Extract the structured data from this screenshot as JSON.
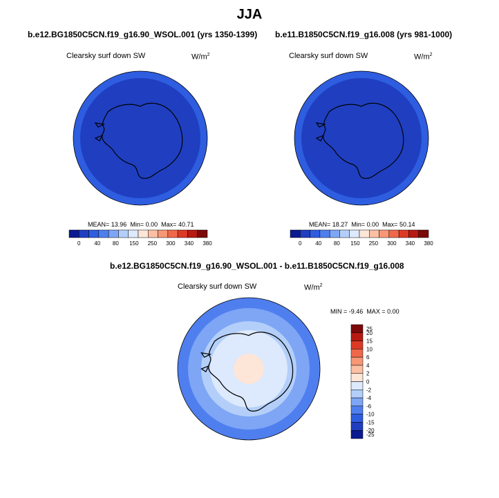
{
  "title": "JJA",
  "panels": [
    {
      "title": "b.e12.BG1850C5CN.f19_g16.90_WSOL.001 (yrs 1350-1399)",
      "variable": "Clearsky surf down SW",
      "units_base": "W/m",
      "units_exp": "2",
      "stats": {
        "mean_label": "MEAN=",
        "mean": "13.96",
        "min_label": "Min=",
        "min": "0.00",
        "max_label": "Max=",
        "max": "40.71"
      },
      "colorbar_labels": [
        "0",
        "40",
        "80",
        "150",
        "250",
        "300",
        "340",
        "380"
      ]
    },
    {
      "title": "b.e11.B1850C5CN.f19_g16.008 (yrs 981-1000)",
      "variable": "Clearsky surf down SW",
      "units_base": "W/m",
      "units_exp": "2",
      "stats": {
        "mean_label": "MEAN=",
        "mean": "18.27",
        "min_label": "Min=",
        "min": "0.00",
        "max_label": "Max=",
        "max": "50.14"
      },
      "colorbar_labels": [
        "0",
        "40",
        "80",
        "150",
        "250",
        "300",
        "340",
        "380"
      ]
    }
  ],
  "diff": {
    "title": "b.e12.BG1850C5CN.f19_g16.90_WSOL.001 - b.e11.B1850C5CN.f19_g16.008",
    "variable": "Clearsky surf down SW",
    "units_base": "W/m",
    "units_exp": "2",
    "stats": {
      "min_label": "MIN =",
      "min": "-9.46",
      "max_label": "MAX =",
      "max": "0.00"
    },
    "colorbar_labels": [
      "25",
      "20",
      "15",
      "10",
      "6",
      "4",
      "2",
      "0",
      "-2",
      "-4",
      "-6",
      "-10",
      "-15",
      "-20",
      "-25"
    ]
  },
  "colors": {
    "abs_scale": [
      "#0a1a8f",
      "#1f3fc0",
      "#2e5de0",
      "#4f7fef",
      "#7ea6f5",
      "#b3cff9",
      "#dde9fc",
      "#fde5d8",
      "#fbbfa3",
      "#f79776",
      "#f0684a",
      "#dc3a26",
      "#b61a12",
      "#7c0a0a"
    ],
    "diff_scale": [
      "#7c0a0a",
      "#b61a12",
      "#dc3a26",
      "#f0684a",
      "#f79776",
      "#fbbfa3",
      "#fde5d8",
      "#dde9fc",
      "#b3cff9",
      "#7ea6f5",
      "#4f7fef",
      "#2e5de0",
      "#1f3fc0",
      "#0a1a8f"
    ]
  }
}
